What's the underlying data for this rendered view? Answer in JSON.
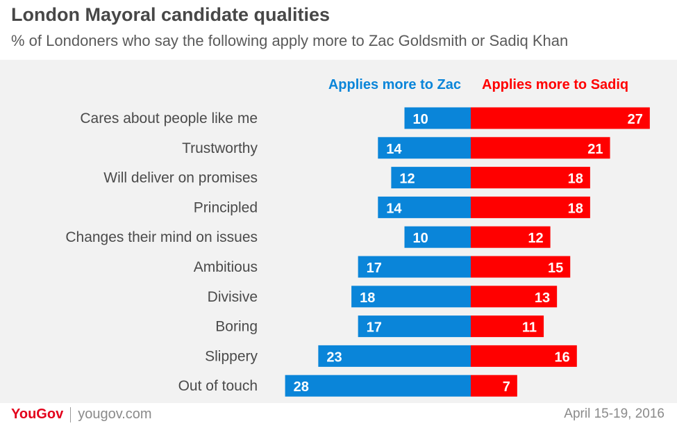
{
  "header": {
    "title": "London Mayoral candidate qualities",
    "subtitle": "% of Londoners who say the following apply more to Zac Goldsmith or Sadiq Khan"
  },
  "chart_data": {
    "type": "bar",
    "orientation": "horizontal-diverging",
    "categories": [
      "Cares about people like me",
      "Trustworthy",
      "Will deliver on promises",
      "Principled",
      "Changes their mind on issues",
      "Ambitious",
      "Divisive",
      "Boring",
      "Slippery",
      "Out of touch"
    ],
    "series": [
      {
        "name": "Applies more to Zac",
        "color": "#0a85d9",
        "values": [
          10,
          14,
          12,
          14,
          10,
          17,
          18,
          17,
          23,
          28
        ]
      },
      {
        "name": "Applies more to Sadiq",
        "color": "#ff0000",
        "values": [
          27,
          21,
          18,
          18,
          12,
          15,
          13,
          11,
          16,
          7
        ]
      }
    ],
    "legend_position": "top",
    "grid": false,
    "data_labels": true
  },
  "footer": {
    "brand_you": "You",
    "brand_gov": "Gov",
    "url": "yougov.com",
    "date": "April 15-19, 2016"
  }
}
